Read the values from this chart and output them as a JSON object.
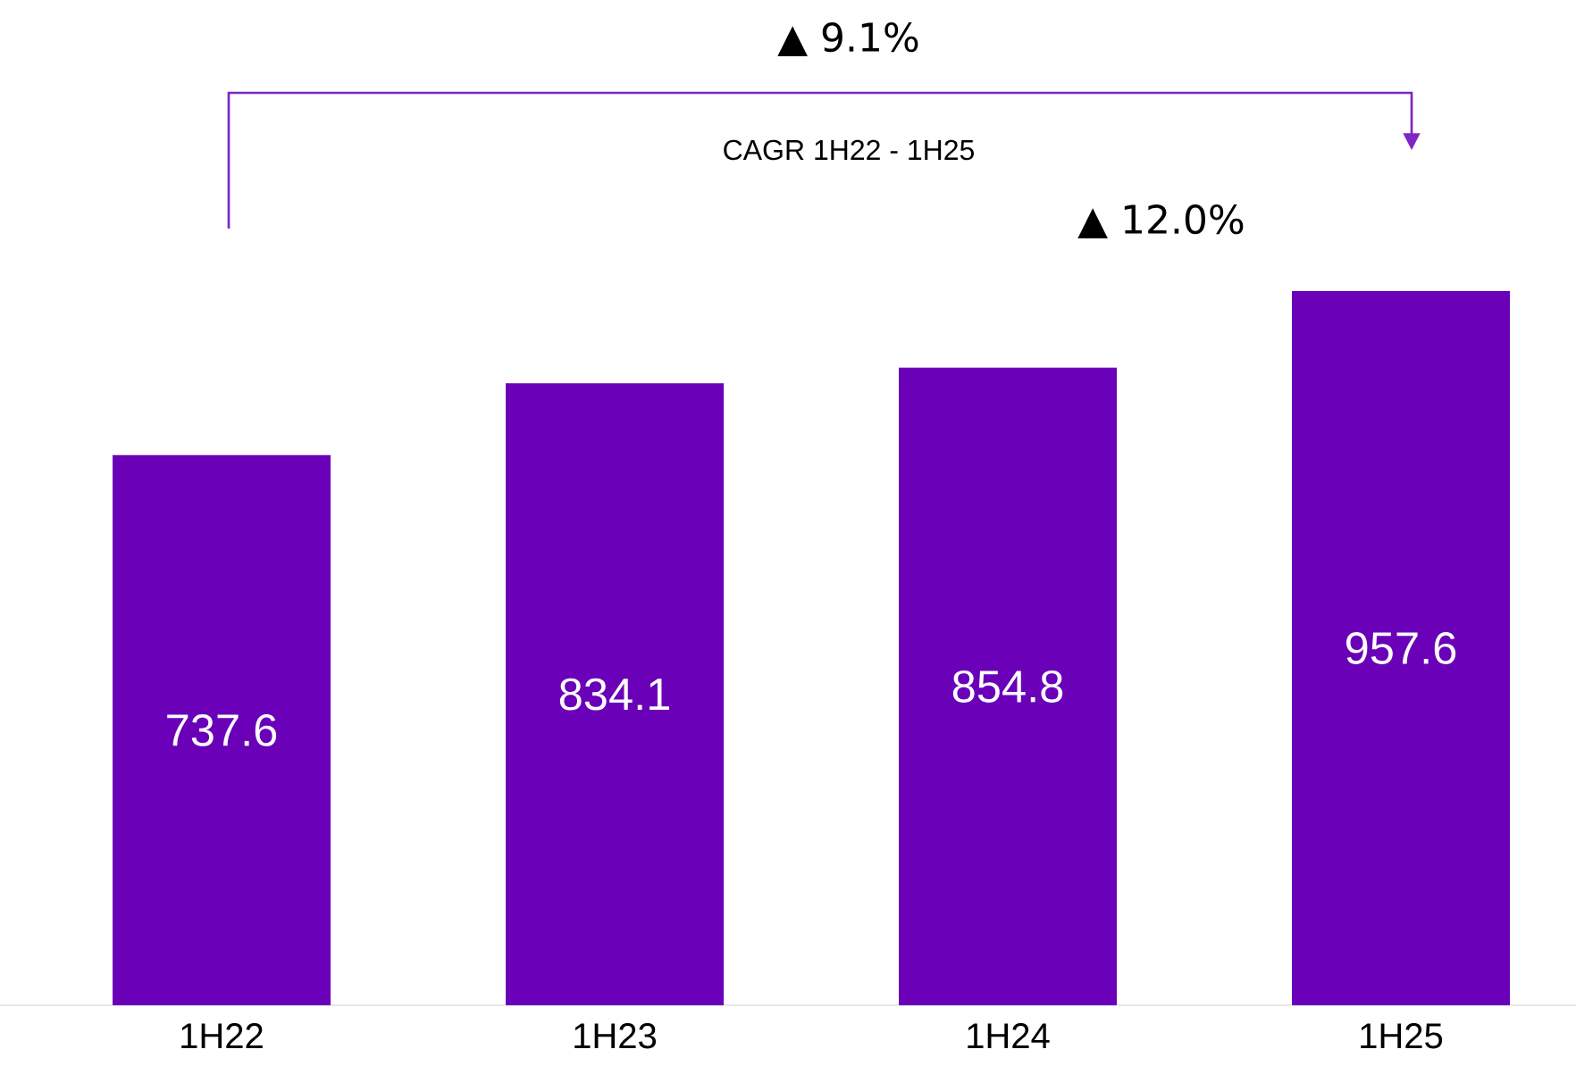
{
  "chart_data": {
    "type": "bar",
    "categories": [
      "1H22",
      "1H23",
      "1H24",
      "1H25"
    ],
    "values": [
      737.6,
      834.1,
      854.8,
      957.6
    ],
    "color": "#6a00b8",
    "data_labels": true,
    "annotations": [
      "▲ 9.1%",
      "CAGR 1H22 - 1H25",
      "▲ 12.0%"
    ]
  }
}
